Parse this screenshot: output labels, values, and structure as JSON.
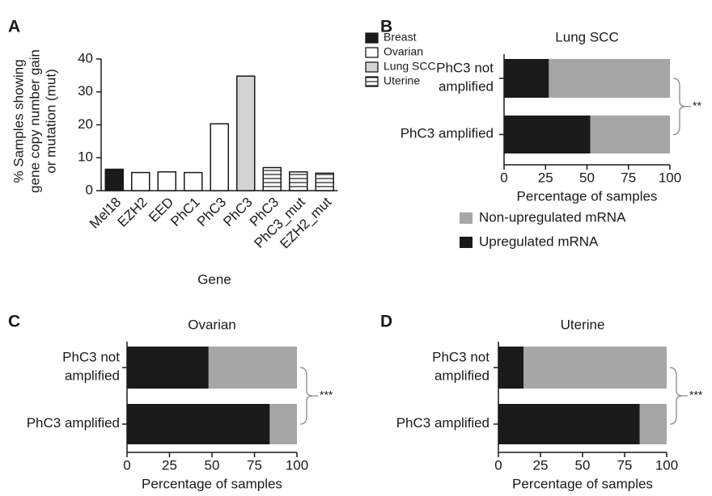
{
  "chart_data": [
    {
      "type": "bar",
      "label": "A",
      "ylabel": [
        "% Samples showing",
        "gene copy number gain",
        "or mutation (mut)"
      ],
      "xlabel": "Gene",
      "categories": [
        "Mel18",
        "EZH2",
        "EED",
        "PhC1",
        "PhC3",
        "PhC3",
        "PhC3",
        "PhC3_mut",
        "EZH2_mut"
      ],
      "series": [
        {
          "name": "Breast",
          "color": "#1a1a1a",
          "values": [
            6.5,
            null,
            null,
            null,
            null,
            null,
            null,
            null,
            null
          ]
        },
        {
          "name": "Ovarian",
          "color": "#ffffff",
          "values": [
            null,
            5.5,
            5.7,
            5.5,
            20.3,
            null,
            null,
            null,
            null
          ]
        },
        {
          "name": "Lung SCC",
          "color": "#d3d3d3",
          "values": [
            null,
            null,
            null,
            null,
            null,
            34.8,
            null,
            null,
            null
          ]
        },
        {
          "name": "Uterine",
          "color": "#ffffff",
          "hatch": "horizontal",
          "values": [
            null,
            null,
            null,
            null,
            null,
            null,
            7,
            5.7,
            5.3
          ]
        }
      ],
      "ylim": [
        0,
        40
      ],
      "yticks": [
        0,
        10,
        20,
        30,
        40
      ],
      "legend": "upper right"
    },
    {
      "type": "stacked_barh",
      "label": "B",
      "title": "Lung SCC",
      "categories": [
        [
          "PhC3 not",
          "amplified"
        ],
        [
          "PhC3 amplified"
        ]
      ],
      "series": [
        {
          "name": "Upregulated mRNA",
          "color": "#1a1a1a",
          "values": [
            27,
            52
          ]
        },
        {
          "name": "Non-upregulated mRNA",
          "color": "#a6a6a6",
          "values": [
            73,
            48
          ]
        }
      ],
      "xlim": [
        0,
        100
      ],
      "xticks": [
        0,
        25,
        50,
        75,
        100
      ],
      "xlabel": "Percentage of samples",
      "annotation": "**",
      "legend": "below"
    },
    {
      "type": "stacked_barh",
      "label": "C",
      "title": "Ovarian",
      "categories": [
        [
          "PhC3 not",
          "amplified"
        ],
        [
          "PhC3 amplified"
        ]
      ],
      "series": [
        {
          "name": "Upregulated mRNA",
          "color": "#1a1a1a",
          "values": [
            48,
            84
          ]
        },
        {
          "name": "Non-upregulated mRNA",
          "color": "#a6a6a6",
          "values": [
            52,
            16
          ]
        }
      ],
      "xlim": [
        0,
        100
      ],
      "xticks": [
        0,
        25,
        50,
        75,
        100
      ],
      "xlabel": "Percentage of samples",
      "annotation": "***"
    },
    {
      "type": "stacked_barh",
      "label": "D",
      "title": "Uterine",
      "categories": [
        [
          "PhC3 not",
          "amplified"
        ],
        [
          "PhC3 amplified"
        ]
      ],
      "series": [
        {
          "name": "Upregulated mRNA",
          "color": "#1a1a1a",
          "values": [
            15,
            84
          ]
        },
        {
          "name": "Non-upregulated mRNA",
          "color": "#a6a6a6",
          "values": [
            85,
            16
          ]
        }
      ],
      "xlim": [
        0,
        100
      ],
      "xticks": [
        0,
        25,
        50,
        75,
        100
      ],
      "xlabel": "Percentage of samples",
      "annotation": "***"
    }
  ]
}
